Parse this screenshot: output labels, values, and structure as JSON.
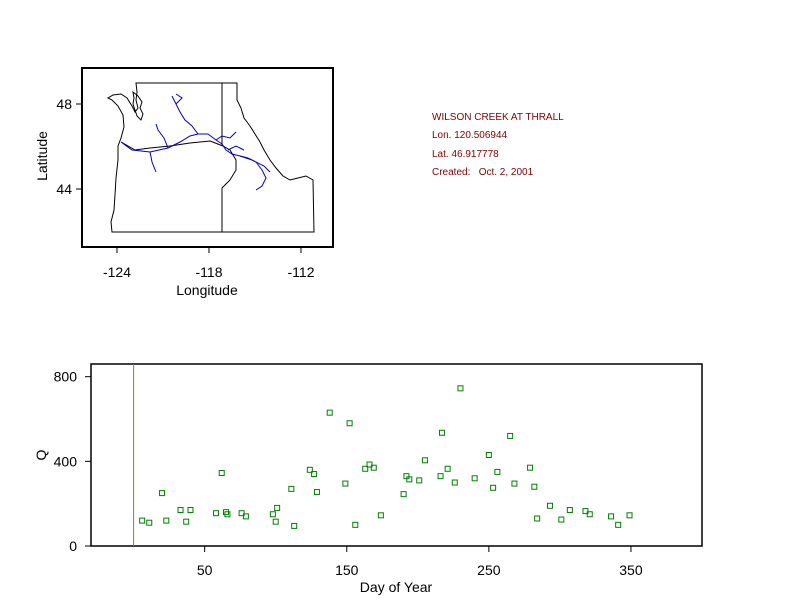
{
  "map": {
    "xlabel": "Longitude",
    "ylabel": "Latitude",
    "xticks": [
      "-124",
      "-118",
      "-112"
    ],
    "yticks": [
      "48",
      "44"
    ],
    "colors": {
      "boundary": "#000000",
      "rivers": "#0000cc"
    }
  },
  "info": {
    "station": "WILSON CREEK AT THRALL",
    "lon": "Lon. 120.506944",
    "lat": "Lat. 46.917778",
    "created": "Created:   Oct. 2, 2001",
    "color": "#800000"
  },
  "chart_data": {
    "type": "scatter",
    "xlabel": "Day of Year",
    "ylabel": "Q",
    "xlim": [
      -30,
      400
    ],
    "ylim": [
      0,
      860
    ],
    "xticks": [
      50,
      150,
      250,
      350
    ],
    "yticks": [
      0,
      400,
      800
    ],
    "vline_x": 0,
    "marker": "open-square",
    "marker_color": "#008000",
    "points": [
      [
        6,
        120
      ],
      [
        11,
        110
      ],
      [
        20,
        250
      ],
      [
        23,
        120
      ],
      [
        33,
        170
      ],
      [
        37,
        115
      ],
      [
        40,
        170
      ],
      [
        58,
        155
      ],
      [
        62,
        345
      ],
      [
        65,
        160
      ],
      [
        66,
        150
      ],
      [
        76,
        155
      ],
      [
        79,
        140
      ],
      [
        98,
        150
      ],
      [
        100,
        115
      ],
      [
        101,
        180
      ],
      [
        111,
        270
      ],
      [
        113,
        95
      ],
      [
        124,
        360
      ],
      [
        127,
        340
      ],
      [
        129,
        255
      ],
      [
        138,
        630
      ],
      [
        149,
        295
      ],
      [
        152,
        580
      ],
      [
        156,
        100
      ],
      [
        163,
        365
      ],
      [
        166,
        385
      ],
      [
        169,
        370
      ],
      [
        174,
        145
      ],
      [
        190,
        245
      ],
      [
        192,
        330
      ],
      [
        194,
        315
      ],
      [
        201,
        310
      ],
      [
        205,
        405
      ],
      [
        216,
        330
      ],
      [
        217,
        535
      ],
      [
        221,
        365
      ],
      [
        226,
        300
      ],
      [
        230,
        745
      ],
      [
        240,
        320
      ],
      [
        250,
        430
      ],
      [
        253,
        275
      ],
      [
        256,
        350
      ],
      [
        265,
        520
      ],
      [
        268,
        295
      ],
      [
        279,
        370
      ],
      [
        282,
        280
      ],
      [
        284,
        130
      ],
      [
        293,
        190
      ],
      [
        301,
        125
      ],
      [
        307,
        170
      ],
      [
        318,
        165
      ],
      [
        321,
        150
      ],
      [
        336,
        140
      ],
      [
        341,
        100
      ],
      [
        349,
        145
      ]
    ]
  }
}
